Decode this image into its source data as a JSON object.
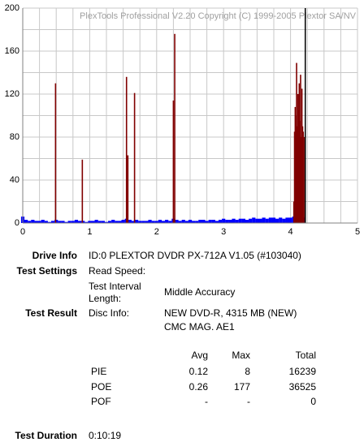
{
  "chart_data": {
    "type": "bar",
    "watermark": "PlexTools Professional V2.20 Copyright (C) 1999-2005 Plextor SA/NV",
    "xlim": [
      0,
      5
    ],
    "ylim": [
      0,
      200
    ],
    "xticks": [
      0,
      1,
      2,
      3,
      4,
      5
    ],
    "yticks": [
      0,
      40,
      80,
      120,
      160,
      200
    ],
    "xgrid": [
      0,
      0.25,
      0.5,
      0.75,
      1,
      1.25,
      1.5,
      1.75,
      2,
      2.25,
      2.5,
      2.75,
      3,
      3.25,
      3.5,
      3.75,
      4,
      4.25,
      4.5,
      4.75,
      5
    ],
    "ygrid": [
      0,
      20,
      40,
      60,
      80,
      100,
      120,
      140,
      160,
      180,
      200
    ],
    "grid": true,
    "marker_x": 4.22,
    "series": [
      {
        "color": "#0000ff",
        "x": [
          0,
          0.05,
          0.1,
          0.15,
          0.2,
          0.25,
          0.3,
          0.35,
          0.4,
          0.45,
          0.5,
          0.55,
          0.6,
          0.65,
          0.7,
          0.75,
          0.8,
          0.85,
          0.9,
          0.95,
          1,
          1.05,
          1.1,
          1.15,
          1.2,
          1.25,
          1.3,
          1.35,
          1.4,
          1.45,
          1.5,
          1.55,
          1.6,
          1.65,
          1.7,
          1.75,
          1.8,
          1.85,
          1.9,
          1.95,
          2,
          2.05,
          2.1,
          2.15,
          2.2,
          2.25,
          2.3,
          2.35,
          2.4,
          2.45,
          2.5,
          2.55,
          2.6,
          2.65,
          2.7,
          2.75,
          2.8,
          2.85,
          2.9,
          2.95,
          3,
          3.05,
          3.1,
          3.15,
          3.2,
          3.25,
          3.3,
          3.35,
          3.4,
          3.45,
          3.5,
          3.55,
          3.6,
          3.65,
          3.7,
          3.75,
          3.8,
          3.85,
          3.9,
          3.95,
          4,
          4.05,
          4.1,
          4.15,
          4.2
        ],
        "values": [
          6,
          3,
          2,
          3,
          2,
          2,
          3,
          2,
          1,
          2,
          3,
          2,
          2,
          1,
          2,
          2,
          3,
          2,
          2,
          1,
          2,
          2,
          3,
          2,
          2,
          1,
          2,
          3,
          2,
          2,
          3,
          4,
          3,
          2,
          3,
          2,
          2,
          2,
          3,
          2,
          2,
          3,
          2,
          3,
          2,
          4,
          3,
          2,
          3,
          2,
          3,
          2,
          2,
          3,
          3,
          2,
          3,
          3,
          2,
          3,
          4,
          3,
          3,
          4,
          3,
          4,
          4,
          3,
          4,
          5,
          4,
          4,
          5,
          4,
          5,
          5,
          4,
          5,
          4,
          5,
          5,
          6,
          7,
          8,
          5
        ]
      },
      {
        "color": "#800000",
        "x": [
          0.49,
          0.89,
          1.55,
          1.57,
          1.67,
          2.25,
          2.27,
          4.05,
          4.06,
          4.07,
          4.08,
          4.09,
          4.1,
          4.11,
          4.12,
          4.13,
          4.14,
          4.15,
          4.16,
          4.17,
          4.18,
          4.19,
          4.2
        ],
        "values": [
          130,
          59,
          136,
          63,
          121,
          114,
          176,
          20,
          85,
          108,
          100,
          149,
          90,
          120,
          105,
          130,
          95,
          138,
          80,
          125,
          90,
          85,
          80
        ]
      }
    ]
  },
  "info": {
    "drive_label": "Drive Info",
    "drive": "ID:0 PLEXTOR DVDR PX-712A V1.05 (#103040)",
    "settings_label": "Test Settings",
    "read_speed": "Read Speed:",
    "interval_label": "Test Interval Length:",
    "interval": "Middle Accuracy",
    "result_label": "Test Result",
    "disc_label": "Disc Info:",
    "disc": "NEW DVD-R, 4315 MB (NEW)",
    "media": "CMC MAG. AE1",
    "table": {
      "header": [
        "Avg",
        "Max",
        "Total"
      ],
      "rows": [
        [
          "PIE",
          0.12,
          8,
          16239
        ],
        [
          "POE",
          0.26,
          177,
          36525
        ],
        [
          "POF",
          "-",
          "-",
          0
        ]
      ]
    },
    "duration_label": "Test Duration",
    "duration": "0:10:19"
  }
}
